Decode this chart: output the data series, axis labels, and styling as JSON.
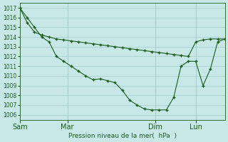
{
  "bg_color": "#c8e8e8",
  "grid_color": "#a0cccc",
  "line_color": "#1a5c1a",
  "xlabel": "Pression niveau de la mer(  hPa  )",
  "ylim": [
    1005.5,
    1017.5
  ],
  "yticks": [
    1006,
    1007,
    1008,
    1009,
    1010,
    1011,
    1012,
    1013,
    1014,
    1015,
    1016,
    1017
  ],
  "xlim": [
    0,
    280
  ],
  "xtick_positions": [
    0,
    65,
    185,
    240
  ],
  "xtick_labels": [
    "Sam",
    "Mar",
    "Dim",
    "Lun"
  ],
  "line_straight_x": [
    0,
    10,
    20,
    30,
    40,
    50,
    60,
    70,
    80,
    90,
    100,
    110,
    120,
    130,
    140,
    150,
    160,
    170,
    180,
    190,
    200,
    210,
    220,
    230,
    240,
    250,
    260,
    270,
    280
  ],
  "line_straight_y": [
    1017.0,
    1015.5,
    1014.5,
    1014.2,
    1014.0,
    1013.8,
    1013.7,
    1013.6,
    1013.5,
    1013.4,
    1013.3,
    1013.2,
    1013.1,
    1013.0,
    1012.9,
    1012.8,
    1012.7,
    1012.6,
    1012.5,
    1012.4,
    1012.3,
    1012.2,
    1012.1,
    1012.0,
    1013.5,
    1013.7,
    1013.8,
    1013.8,
    1013.8
  ],
  "line_curve_x": [
    0,
    10,
    20,
    30,
    40,
    50,
    60,
    70,
    80,
    90,
    100,
    110,
    120,
    130,
    140,
    150,
    160,
    170,
    180,
    190,
    200,
    210,
    220,
    230,
    240,
    250,
    260,
    270,
    280
  ],
  "line_curve_y": [
    1017.0,
    1016.0,
    1015.0,
    1014.0,
    1013.5,
    1012.0,
    1011.5,
    1011.0,
    1010.5,
    1010.0,
    1009.6,
    1009.7,
    1009.5,
    1009.3,
    1008.5,
    1007.5,
    1007.0,
    1006.6,
    1006.5,
    1006.5,
    1006.5,
    1007.8,
    1011.0,
    1011.5,
    1011.5,
    1009.0,
    1010.7,
    1013.5,
    1013.8
  ]
}
